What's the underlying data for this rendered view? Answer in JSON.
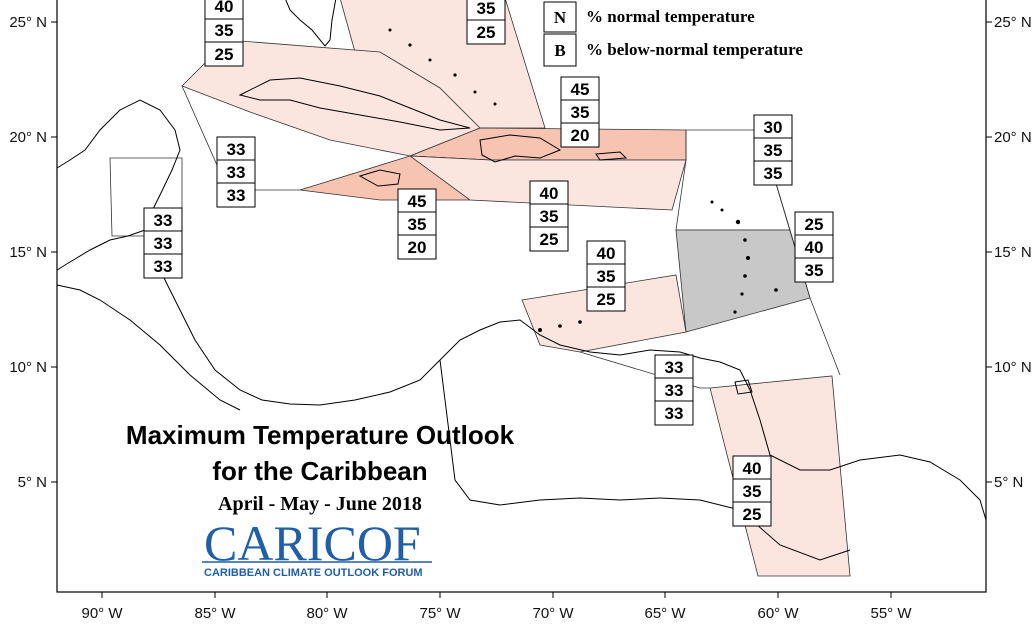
{
  "legend": {
    "items": [
      {
        "key": "N",
        "label": "% normal temperature"
      },
      {
        "key": "B",
        "label": "% below-normal temperature"
      }
    ]
  },
  "title": {
    "line1": "Maximum Temperature Outlook",
    "line2": "for the Caribbean",
    "period": "April - May - June 2018"
  },
  "logo": {
    "name_part1": "CARI",
    "name_part2": "COF",
    "tagline": "CARIBBEAN CLIMATE OUTLOOK FORUM"
  },
  "axes": {
    "x_ticks": [
      "90° W",
      "85° W",
      "80° W",
      "75° W",
      "70° W",
      "65° W",
      "60° W",
      "55° W"
    ],
    "y_ticks": [
      "25° N",
      "20° N",
      "15° N",
      "10° N",
      "5° N"
    ]
  },
  "colors": {
    "light_pink": "#fbe6df",
    "salmon": "#f7c4b2",
    "grey": "#c8c8c8"
  },
  "probability_boxes": [
    {
      "region": "bahamas",
      "values": [
        "35",
        "25"
      ]
    },
    {
      "region": "cuba",
      "values": [
        "40",
        "35",
        "25"
      ]
    },
    {
      "region": "hispaniola",
      "values": [
        "45",
        "35",
        "20"
      ]
    },
    {
      "region": "leeward-islands",
      "values": [
        "30",
        "35",
        "35"
      ]
    },
    {
      "region": "western-caribbean",
      "values": [
        "33",
        "33",
        "33"
      ]
    },
    {
      "region": "jamaica",
      "values": [
        "45",
        "35",
        "20"
      ]
    },
    {
      "region": "central-america",
      "values": [
        "33",
        "33",
        "33"
      ]
    },
    {
      "region": "puerto-rico-sea",
      "values": [
        "40",
        "35",
        "25"
      ]
    },
    {
      "region": "windward-islands",
      "values": [
        "25",
        "40",
        "35"
      ]
    },
    {
      "region": "abc-islands",
      "values": [
        "40",
        "35",
        "25"
      ]
    },
    {
      "region": "trinidad",
      "values": [
        "33",
        "33",
        "33"
      ]
    },
    {
      "region": "guianas",
      "values": [
        "40",
        "35",
        "25"
      ]
    }
  ]
}
